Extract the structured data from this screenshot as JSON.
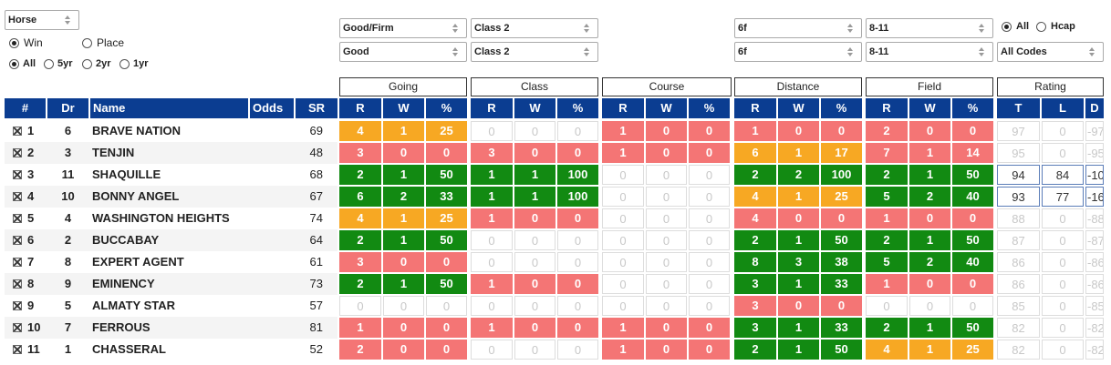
{
  "controls": {
    "sort": "Horse",
    "result": {
      "options": [
        "Win",
        "Place"
      ],
      "selected": 0
    },
    "period": {
      "options": [
        "All",
        "5yr",
        "2yr",
        "1yr"
      ],
      "selected": 0
    },
    "filters": [
      [
        "Good/Firm",
        "Good"
      ],
      [
        "Class 2",
        "Class 2"
      ],
      [
        "6f",
        "6f"
      ],
      [
        "8-11",
        "8-11"
      ]
    ],
    "race_type": {
      "options": [
        "All",
        "Hcap"
      ],
      "selected": 0
    },
    "codes": "All Codes"
  },
  "table": {
    "columns": [
      "#",
      "Dr",
      "Name",
      "Odds",
      "SR"
    ],
    "groups": [
      {
        "title": "Going",
        "columns": [
          "R",
          "W",
          "%"
        ]
      },
      {
        "title": "Class",
        "columns": [
          "R",
          "W",
          "%"
        ]
      },
      {
        "title": "Course",
        "columns": [
          "R",
          "W",
          "%"
        ]
      },
      {
        "title": "Distance",
        "columns": [
          "R",
          "W",
          "%"
        ]
      },
      {
        "title": "Field",
        "columns": [
          "R",
          "W",
          "%"
        ]
      },
      {
        "title": "Rating",
        "columns": [
          "T",
          "L",
          "D"
        ]
      }
    ],
    "rows": [
      {
        "no": 1,
        "dr": 6,
        "name": "BRAVE NATION",
        "sr": 69,
        "cells": [
          {
            "values": [
              4,
              1,
              25
            ],
            "color": "#f7a823"
          },
          {
            "values": [
              0,
              0,
              0
            ]
          },
          {
            "values": [
              1,
              0,
              0
            ],
            "color": "#f47575"
          },
          {
            "values": [
              1,
              0,
              0
            ],
            "color": "#f47575"
          },
          {
            "values": [
              2,
              0,
              0
            ],
            "color": "#f47575"
          },
          {
            "values": [
              97,
              0,
              -97
            ]
          }
        ]
      },
      {
        "no": 2,
        "dr": 3,
        "name": "TENJIN",
        "sr": 48,
        "cells": [
          {
            "values": [
              3,
              0,
              0
            ],
            "color": "#f47575"
          },
          {
            "values": [
              3,
              0,
              0
            ],
            "color": "#f47575"
          },
          {
            "values": [
              1,
              0,
              0
            ],
            "color": "#f47575"
          },
          {
            "values": [
              6,
              1,
              17
            ],
            "color": "#f7a823"
          },
          {
            "values": [
              7,
              1,
              14
            ],
            "color": "#f47575"
          },
          {
            "values": [
              95,
              0,
              -95
            ]
          }
        ]
      },
      {
        "no": 3,
        "dr": 11,
        "name": "SHAQUILLE",
        "sr": 68,
        "cells": [
          {
            "values": [
              2,
              1,
              50
            ],
            "color": "#128a12"
          },
          {
            "values": [
              1,
              1,
              100
            ],
            "color": "#128a12"
          },
          {
            "values": [
              0,
              0,
              0
            ]
          },
          {
            "values": [
              2,
              2,
              100
            ],
            "color": "#128a12"
          },
          {
            "values": [
              2,
              1,
              50
            ],
            "color": "#128a12"
          },
          {
            "values": [
              94,
              84,
              -10
            ],
            "highlighted": true
          }
        ]
      },
      {
        "no": 4,
        "dr": 10,
        "name": "BONNY ANGEL",
        "sr": 67,
        "cells": [
          {
            "values": [
              6,
              2,
              33
            ],
            "color": "#128a12"
          },
          {
            "values": [
              1,
              1,
              100
            ],
            "color": "#128a12"
          },
          {
            "values": [
              0,
              0,
              0
            ]
          },
          {
            "values": [
              4,
              1,
              25
            ],
            "color": "#f7a823"
          },
          {
            "values": [
              5,
              2,
              40
            ],
            "color": "#128a12"
          },
          {
            "values": [
              93,
              77,
              -16
            ],
            "highlighted": true
          }
        ]
      },
      {
        "no": 5,
        "dr": 4,
        "name": "WASHINGTON HEIGHTS",
        "sr": 74,
        "cells": [
          {
            "values": [
              4,
              1,
              25
            ],
            "color": "#f7a823"
          },
          {
            "values": [
              1,
              0,
              0
            ],
            "color": "#f47575"
          },
          {
            "values": [
              0,
              0,
              0
            ]
          },
          {
            "values": [
              4,
              0,
              0
            ],
            "color": "#f47575"
          },
          {
            "values": [
              1,
              0,
              0
            ],
            "color": "#f47575"
          },
          {
            "values": [
              88,
              0,
              -88
            ]
          }
        ]
      },
      {
        "no": 6,
        "dr": 2,
        "name": "BUCCABAY",
        "sr": 64,
        "cells": [
          {
            "values": [
              2,
              1,
              50
            ],
            "color": "#128a12"
          },
          {
            "values": [
              0,
              0,
              0
            ]
          },
          {
            "values": [
              0,
              0,
              0
            ]
          },
          {
            "values": [
              2,
              1,
              50
            ],
            "color": "#128a12"
          },
          {
            "values": [
              2,
              1,
              50
            ],
            "color": "#128a12"
          },
          {
            "values": [
              87,
              0,
              -87
            ]
          }
        ]
      },
      {
        "no": 7,
        "dr": 8,
        "name": "EXPERT AGENT",
        "sr": 61,
        "cells": [
          {
            "values": [
              3,
              0,
              0
            ],
            "color": "#f47575"
          },
          {
            "values": [
              0,
              0,
              0
            ]
          },
          {
            "values": [
              0,
              0,
              0
            ]
          },
          {
            "values": [
              8,
              3,
              38
            ],
            "color": "#128a12"
          },
          {
            "values": [
              5,
              2,
              40
            ],
            "color": "#128a12"
          },
          {
            "values": [
              86,
              0,
              -86
            ]
          }
        ]
      },
      {
        "no": 8,
        "dr": 9,
        "name": "EMINENCY",
        "sr": 73,
        "cells": [
          {
            "values": [
              2,
              1,
              50
            ],
            "color": "#128a12"
          },
          {
            "values": [
              1,
              0,
              0
            ],
            "color": "#f47575"
          },
          {
            "values": [
              0,
              0,
              0
            ]
          },
          {
            "values": [
              3,
              1,
              33
            ],
            "color": "#128a12"
          },
          {
            "values": [
              1,
              0,
              0
            ],
            "color": "#f47575"
          },
          {
            "values": [
              86,
              0,
              -86
            ]
          }
        ]
      },
      {
        "no": 9,
        "dr": 5,
        "name": "ALMATY STAR",
        "sr": 57,
        "cells": [
          {
            "values": [
              0,
              0,
              0
            ]
          },
          {
            "values": [
              0,
              0,
              0
            ]
          },
          {
            "values": [
              0,
              0,
              0
            ]
          },
          {
            "values": [
              3,
              0,
              0
            ],
            "color": "#f47575"
          },
          {
            "values": [
              0,
              0,
              0
            ]
          },
          {
            "values": [
              85,
              0,
              -85
            ]
          }
        ]
      },
      {
        "no": 10,
        "dr": 7,
        "name": "FERROUS",
        "sr": 81,
        "cells": [
          {
            "values": [
              1,
              0,
              0
            ],
            "color": "#f47575"
          },
          {
            "values": [
              1,
              0,
              0
            ],
            "color": "#f47575"
          },
          {
            "values": [
              1,
              0,
              0
            ],
            "color": "#f47575"
          },
          {
            "values": [
              3,
              1,
              33
            ],
            "color": "#128a12"
          },
          {
            "values": [
              2,
              1,
              50
            ],
            "color": "#128a12"
          },
          {
            "values": [
              82,
              0,
              -82
            ]
          }
        ]
      },
      {
        "no": 11,
        "dr": 1,
        "name": "CHASSERAL",
        "sr": 52,
        "cells": [
          {
            "values": [
              2,
              0,
              0
            ],
            "color": "#f47575"
          },
          {
            "values": [
              0,
              0,
              0
            ]
          },
          {
            "values": [
              1,
              0,
              0
            ],
            "color": "#f47575"
          },
          {
            "values": [
              2,
              1,
              50
            ],
            "color": "#128a12"
          },
          {
            "values": [
              4,
              1,
              25
            ],
            "color": "#f7a823"
          },
          {
            "values": [
              82,
              0,
              -82
            ]
          }
        ]
      }
    ]
  }
}
